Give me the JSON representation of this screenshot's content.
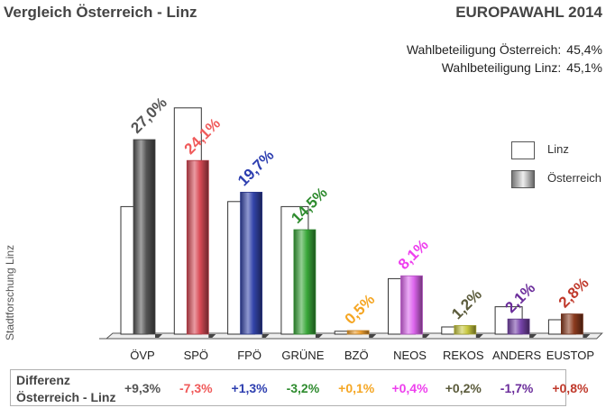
{
  "header": {
    "title": "Vergleich Österreich - Linz",
    "election": "EUROPAWAHL 2014",
    "turnout": [
      {
        "label": "Wahlbeteiligung Österreich:",
        "value": "45,4%"
      },
      {
        "label": "Wahlbeteiligung Linz:",
        "value": "45,1%"
      }
    ]
  },
  "source_label": "Stadtforschung Linz",
  "legend": [
    {
      "label": "Linz"
    },
    {
      "label": "Österreich"
    }
  ],
  "difference": {
    "label_line1": "Differenz",
    "label_line2": "Österreich - Linz",
    "values": [
      "+9,3%",
      "-7,3%",
      "+1,3%",
      "-3,2%",
      "+0,1%",
      "+0,4%",
      "+0,2%",
      "-1,7%",
      "+0,8%"
    ]
  },
  "colors": {
    "ÖVP": "#555555",
    "SPÖ": "#f05a5a",
    "FPÖ": "#2e3fb0",
    "GRÜNE": "#2e8b2e",
    "BZÖ": "#f5a623",
    "NEOS": "#ee3fee",
    "REKOS": "#5a5a3a",
    "ANDERS": "#6b2d9b",
    "EUSTOP": "#c0392b"
  },
  "chart_data": {
    "type": "bar",
    "title": "Vergleich Österreich - Linz — EUROPAWAHL 2014",
    "xlabel": "",
    "ylabel": "",
    "categories": [
      "ÖVP",
      "SPÖ",
      "FPÖ",
      "GRÜNE",
      "BZÖ",
      "NEOS",
      "REKOS",
      "ANDERS",
      "EUSTOP"
    ],
    "series": [
      {
        "name": "Linz",
        "values": [
          17.7,
          31.4,
          18.4,
          17.7,
          0.4,
          7.7,
          1.0,
          3.8,
          2.0
        ]
      },
      {
        "name": "Österreich",
        "values": [
          27.0,
          24.1,
          19.7,
          14.5,
          0.5,
          8.1,
          1.2,
          2.1,
          2.8
        ]
      }
    ],
    "data_labels": [
      "27,0%",
      "24,1%",
      "19,7%",
      "14,5%",
      "0,5%",
      "8,1%",
      "1,2%",
      "2,1%",
      "2,8%"
    ],
    "difference_labels": [
      "+9,3%",
      "-7,3%",
      "+1,3%",
      "-3,2%",
      "+0,1%",
      "+0,4%",
      "+0,2%",
      "-1,7%",
      "+0,8%"
    ],
    "ylim": [
      0,
      35
    ],
    "grid": false,
    "legend_position": "right",
    "bar_colors": [
      "#555555",
      "#d94a55",
      "#3344aa",
      "#3aa83a",
      "#f0a030",
      "#dd66ee",
      "#c8c840",
      "#7744aa",
      "#8b3a1e"
    ]
  }
}
